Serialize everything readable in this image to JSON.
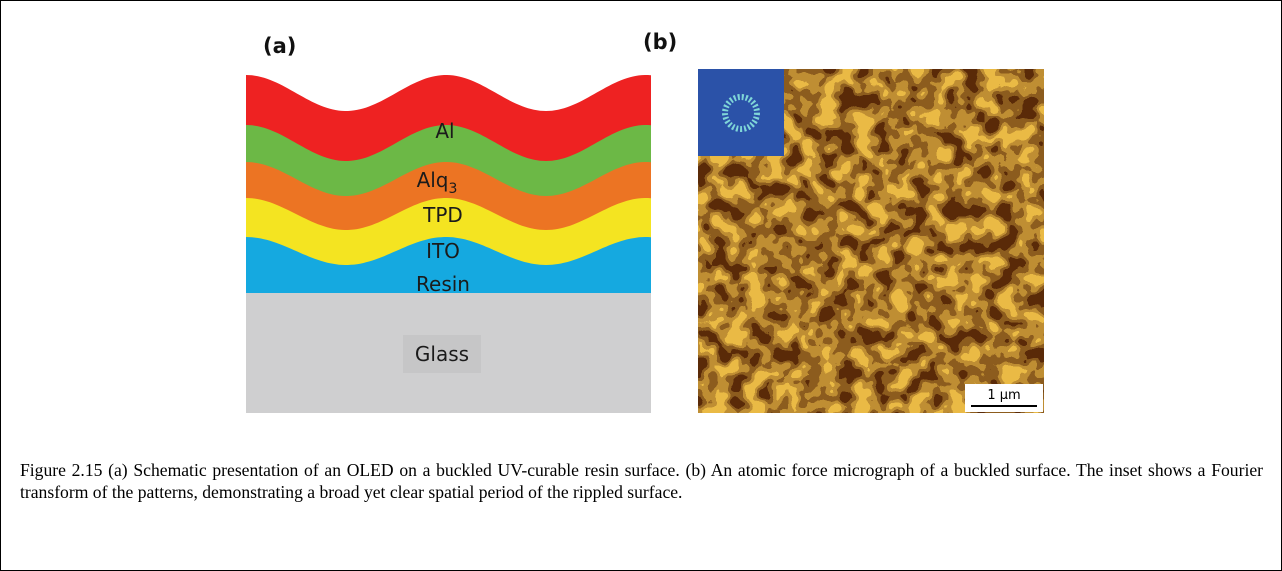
{
  "figure": {
    "panel_a": {
      "label": "(a)",
      "layers": [
        {
          "name": "Al"
        },
        {
          "name": "Alq",
          "subscript": "3"
        },
        {
          "name": "TPD"
        },
        {
          "name": "ITO"
        },
        {
          "name": "Resin"
        },
        {
          "name": "Glass"
        }
      ]
    },
    "panel_b": {
      "label": "(b)",
      "scale_bar": "1 µm"
    }
  },
  "caption": "Figure 2.15 (a) Schematic presentation of an OLED on a buckled UV-curable resin surface. (b) An atomic force micrograph of a buckled surface. The inset shows a Fourier transform of the patterns, demonstrating a broad yet clear spatial period of the rippled surface."
}
